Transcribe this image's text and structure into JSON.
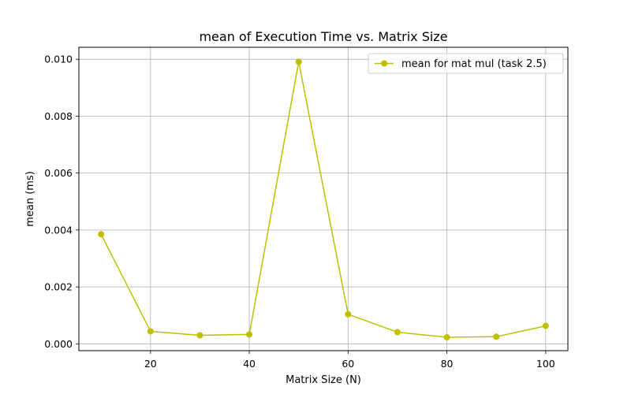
{
  "chart_data": {
    "type": "line",
    "title": "mean of Execution Time vs. Matrix Size",
    "xlabel": "Matrix Size (N)",
    "ylabel": "mean (ms)",
    "xlim": [
      5.5,
      104.5
    ],
    "ylim": [
      -0.00024,
      0.01042
    ],
    "xticks": [
      20,
      40,
      60,
      80,
      100
    ],
    "xtick_labels": [
      "20",
      "40",
      "60",
      "80",
      "100"
    ],
    "yticks": [
      0.0,
      0.002,
      0.004,
      0.006,
      0.008,
      0.01
    ],
    "ytick_labels": [
      "0.000",
      "0.002",
      "0.004",
      "0.006",
      "0.008",
      "0.010"
    ],
    "grid": true,
    "legend_position": "top-right",
    "series": [
      {
        "name": "mean for mat mul (task 2.5)",
        "color": "#bfbf00",
        "marker": "circle",
        "x": [
          10,
          20,
          30,
          40,
          50,
          60,
          70,
          80,
          90,
          100
        ],
        "y": [
          0.00385,
          0.00044,
          0.0003,
          0.00033,
          0.00991,
          0.00104,
          0.00041,
          0.00023,
          0.00025,
          0.00063
        ]
      }
    ]
  }
}
